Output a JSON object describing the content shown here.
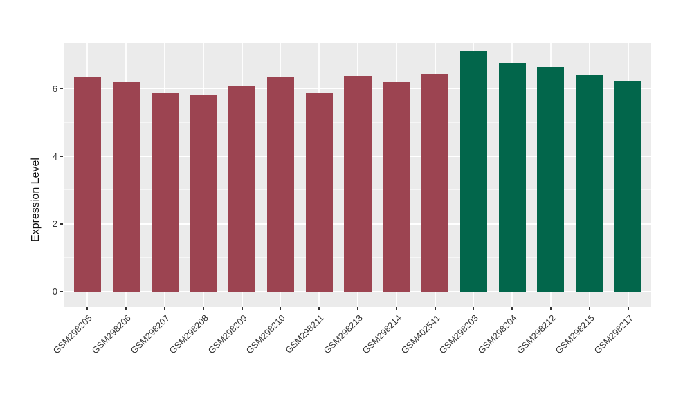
{
  "chart_data": {
    "type": "bar",
    "title": "",
    "ylabel": "Expression Level",
    "xlabel": "",
    "categories": [
      "GSM298205",
      "GSM298206",
      "GSM298207",
      "GSM298208",
      "GSM298209",
      "GSM298210",
      "GSM298211",
      "GSM298213",
      "GSM298214",
      "GSM402541",
      "GSM298203",
      "GSM298204",
      "GSM298212",
      "GSM298215",
      "GSM298217"
    ],
    "values": [
      6.36,
      6.21,
      5.88,
      5.8,
      6.09,
      6.35,
      5.86,
      6.38,
      6.19,
      6.43,
      7.11,
      6.76,
      6.64,
      6.4,
      6.23
    ],
    "groups": [
      "maroon",
      "maroon",
      "maroon",
      "maroon",
      "maroon",
      "maroon",
      "maroon",
      "maroon",
      "maroon",
      "maroon",
      "green",
      "green",
      "green",
      "green",
      "green"
    ],
    "group_colors": {
      "maroon": "#9C4451",
      "green": "#02664B"
    },
    "yticks": [
      0,
      2,
      4,
      6
    ],
    "minor_yticks": [
      1,
      3,
      5,
      7
    ],
    "ylim": [
      -0.46,
      7.36
    ],
    "bar_rel_width": 0.7,
    "grid": true,
    "legend_position": "none",
    "panel_bg": "#EBEBEB",
    "grid_color": "#FFFFFF",
    "axis_text_color": "#333333",
    "tick_color": "#333333"
  }
}
